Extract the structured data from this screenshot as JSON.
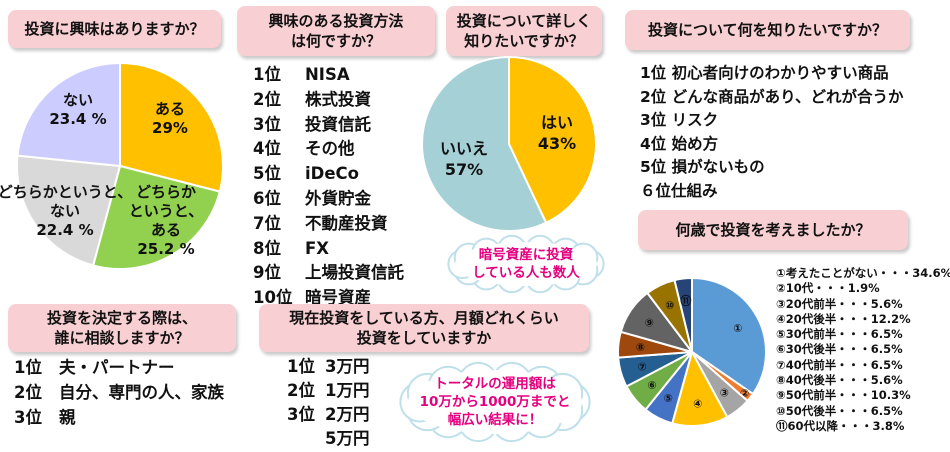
{
  "q1": {
    "title": "投資に興味はありますか？"
  },
  "q2": {
    "title_lines": [
      "興味のある投資方法",
      "は何ですか？"
    ],
    "ranks": [
      "1位",
      "2位",
      "3位",
      "4位",
      "5位",
      "6位",
      "7位",
      "8位",
      "9位",
      "10位"
    ],
    "items": [
      "NISA",
      "株式投資",
      "投資信託",
      "その他",
      "iDeCo",
      "外貨貯金",
      "不動産投資",
      "FX",
      "上場投資信託",
      "暗号資産"
    ]
  },
  "q3": {
    "title_lines": [
      "投資について詳しく",
      "知りたいですか？"
    ],
    "bubble_lines": [
      "暗号資産に投資",
      "している人も数人"
    ]
  },
  "q4": {
    "title": "投資について何を知りたいですか？",
    "items": [
      "1位 初心者向けのわかりやすい商品",
      "2位 どんな商品があり、どれが合うか",
      "3位 リスク",
      "4位 始め方",
      "5位 損がないもの",
      "６位仕組み"
    ]
  },
  "q5": {
    "title_lines": [
      "投資を決定する際は、",
      "誰に相談しますか？"
    ],
    "ranks": [
      "1位",
      "2位",
      "3位"
    ],
    "items": [
      "夫・パートナー",
      "自分、専門の人、家族",
      "親"
    ]
  },
  "q6": {
    "title_lines": [
      "現在投資をしている方、月額どれくらい",
      "投資をしていますか"
    ],
    "ranks": [
      "1位",
      "2位",
      "3位",
      ""
    ],
    "items": [
      "3万円",
      "1万円",
      "2万円",
      "5万円"
    ],
    "bubble_lines": [
      "トータルの運用額は",
      "10万から1000万までと",
      "幅広い結果に！"
    ]
  },
  "q7": {
    "title": "何歳で投資を考えましたか？"
  },
  "chart_data": [
    {
      "type": "pie",
      "title": "投資に興味はありますか？",
      "slices": [
        {
          "label_lines": [
            "ある",
            "29%"
          ],
          "value": 29,
          "color": "#ffc000"
        },
        {
          "label_lines": [
            "どちらか",
            "というと、",
            "ある",
            "25.2 %"
          ],
          "value": 25.2,
          "color": "#92d050"
        },
        {
          "label_lines": [
            "どちらかというと、",
            "ない",
            "22.4 %"
          ],
          "value": 22.4,
          "color": "#d9d9d9"
        },
        {
          "label_lines": [
            "ない",
            "23.4 %"
          ],
          "value": 23.4,
          "color": "#ccccff"
        }
      ]
    },
    {
      "type": "pie",
      "title": "投資について詳しく知りたいですか？",
      "slices": [
        {
          "label_lines": [
            "はい",
            "43%"
          ],
          "value": 43,
          "color": "#ffc000"
        },
        {
          "label_lines": [
            "いいえ",
            "57%"
          ],
          "value": 57,
          "color": "#a5d1d6"
        }
      ]
    },
    {
      "type": "pie",
      "title": "何歳で投資を考えましたか？",
      "slices": [
        {
          "marker": "①",
          "legend": "①考えたことがない・・・34.6%",
          "value": 34.6,
          "color": "#5b9bd5"
        },
        {
          "marker": "②",
          "legend": "②10代・・・1.9%",
          "value": 1.9,
          "color": "#ed7d31"
        },
        {
          "marker": "③",
          "legend": "③20代前半・・・5.6%",
          "value": 5.6,
          "color": "#a5a5a5"
        },
        {
          "marker": "④",
          "legend": "④20代後半・・・12.2%",
          "value": 12.2,
          "color": "#ffc000"
        },
        {
          "marker": "⑤",
          "legend": "⑤30代前半・・・6.5%",
          "value": 6.5,
          "color": "#4472c4"
        },
        {
          "marker": "⑥",
          "legend": "⑥30代後半・・・6.5%",
          "value": 6.5,
          "color": "#70ad47"
        },
        {
          "marker": "⑦",
          "legend": "⑦40代前半・・・6.5%",
          "value": 6.5,
          "color": "#255e91"
        },
        {
          "marker": "⑧",
          "legend": "⑧40代後半・・・5.6%",
          "value": 5.6,
          "color": "#9e480e"
        },
        {
          "marker": "⑨",
          "legend": "⑨50代前半・・・10.3%",
          "value": 10.3,
          "color": "#636363"
        },
        {
          "marker": "⑩",
          "legend": "⑩50代後半・・・6.5%",
          "value": 6.5,
          "color": "#997300"
        },
        {
          "marker": "⑪",
          "legend": "⑪60代以降・・・3.8%",
          "value": 3.8,
          "color": "#264478"
        }
      ]
    }
  ]
}
